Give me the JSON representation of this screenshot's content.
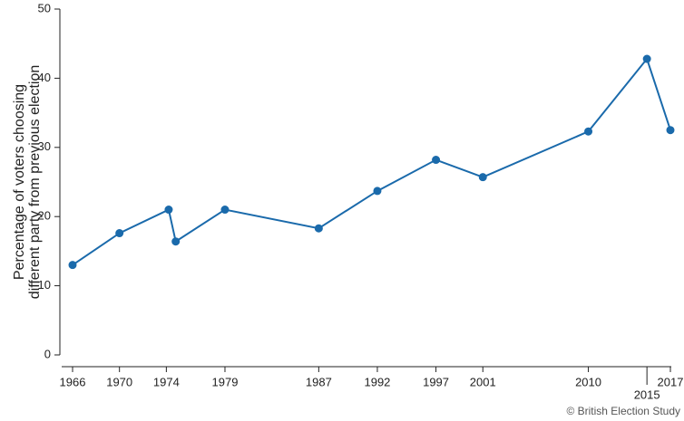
{
  "chart_data": {
    "type": "line",
    "ylabel": [
      "Percentage of voters choosing",
      "different party from previous election"
    ],
    "x": [
      1966,
      1970,
      1974.2,
      1974.8,
      1979,
      1987,
      1992,
      1997,
      2001,
      2010,
      2015,
      2017
    ],
    "values": [
      13,
      17.6,
      21,
      16.4,
      21,
      18.3,
      23.7,
      28.2,
      25.7,
      32.3,
      42.8,
      32.5
    ],
    "color": "#1a6aab",
    "xlim": [
      1966,
      2017
    ],
    "xticks": [
      1966,
      1970,
      1974,
      1979,
      1987,
      1992,
      1997,
      2001,
      2010,
      2015,
      2017
    ],
    "ylim": [
      0,
      50
    ],
    "yticks": [
      0,
      10,
      20,
      30,
      40,
      50
    ],
    "source": "© British Election Study"
  }
}
